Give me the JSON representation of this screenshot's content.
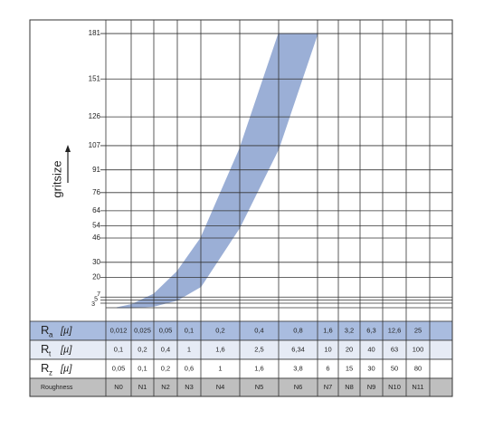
{
  "chart_data": {
    "type": "band",
    "y_label": "gritsize",
    "ylim": [
      0,
      190
    ],
    "yticks": [
      3,
      5,
      7,
      20,
      30,
      46,
      54,
      64,
      76,
      91,
      107,
      126,
      151,
      181
    ],
    "band_color": "#9bafd6",
    "band": {
      "x": [
        1,
        2,
        3,
        4,
        5,
        6,
        7
      ],
      "upper": [
        2,
        9,
        24,
        46,
        105,
        181,
        181
      ],
      "lower": [
        0,
        1,
        5,
        14,
        53,
        105,
        181
      ]
    },
    "table": {
      "rows": [
        {
          "symbol": "R",
          "subscript": "a",
          "unit": "[µ]",
          "values": [
            "0,012",
            "0,025",
            "0,05",
            "0,1",
            "0,2",
            "0,4",
            "0,8",
            "1,6",
            "3,2",
            "6,3",
            "12,6",
            "25"
          ]
        },
        {
          "symbol": "R",
          "subscript": "t",
          "unit": "[µ]",
          "values": [
            "0,1",
            "0,2",
            "0,4",
            "1",
            "1,6",
            "2,5",
            "6,34",
            "10",
            "20",
            "40",
            "63",
            "100"
          ]
        },
        {
          "symbol": "R",
          "subscript": "z",
          "unit": "[µ]",
          "values": [
            "0,05",
            "0,1",
            "0,2",
            "0,6",
            "1",
            "1,6",
            "3,8",
            "6",
            "15",
            "30",
            "50",
            "80"
          ]
        },
        {
          "symbol": "Roughness",
          "values": [
            "N0",
            "N1",
            "N2",
            "N3",
            "N4",
            "N5",
            "N6",
            "N7",
            "N8",
            "N9",
            "N10",
            "N11"
          ]
        }
      ]
    }
  }
}
